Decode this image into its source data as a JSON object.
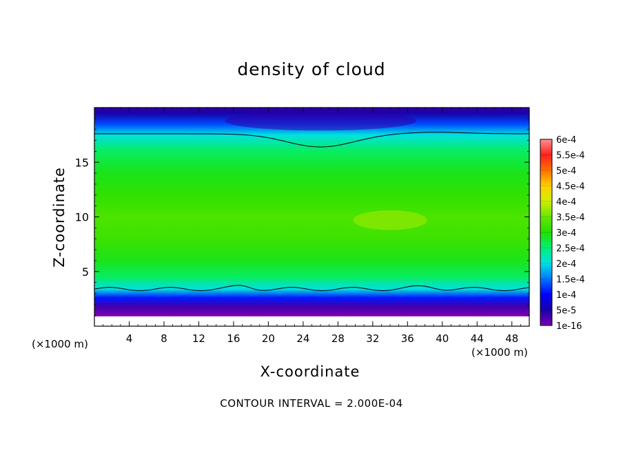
{
  "chart_data": {
    "type": "heatmap",
    "title": "density of cloud",
    "xlabel": "X-coordinate",
    "ylabel": "Z-coordinate",
    "x_unit": "(×1000 m)",
    "x_unit_right": "(×1000 m)",
    "xlim": [
      0,
      50
    ],
    "ylim": [
      0,
      20
    ],
    "x_ticks": [
      4,
      8,
      12,
      16,
      20,
      24,
      28,
      32,
      36,
      40,
      44,
      48
    ],
    "y_ticks": [
      5,
      10,
      15
    ],
    "colorbar": {
      "labels": [
        "1e-16",
        "5e-5",
        "1e-4",
        "1.5e-4",
        "2e-4",
        "2.5e-4",
        "3e-4",
        "3.5e-4",
        "4e-4",
        "4.5e-4",
        "5e-4",
        "5.5e-4",
        "6e-4"
      ],
      "values": [
        0,
        5e-05,
        0.0001,
        0.00015,
        0.0002,
        0.00025,
        0.0003,
        0.00035,
        0.0004,
        0.00045,
        0.0005,
        0.00055,
        0.0006
      ],
      "colors": [
        "#7a00b4",
        "#1a00a8",
        "#0000ff",
        "#0078ff",
        "#00e0e0",
        "#00f078",
        "#22e000",
        "#66e600",
        "#d0ee00",
        "#ffd000",
        "#ff7000",
        "#ff2020",
        "#ff9090"
      ]
    },
    "contour_interval_label": "CONTOUR INTERVAL = 2.000E-04",
    "contour_levels": [
      0.0002
    ],
    "vertical_profile": {
      "z": [
        0,
        1.0,
        1.8,
        2.6,
        3.4,
        4.5,
        6,
        8,
        10,
        12,
        14,
        16,
        17.5,
        18.5,
        19.5,
        20
      ],
      "density": [
        0,
        0,
        3e-05,
        0.00011,
        0.0002,
        0.00026,
        0.00029,
        0.00032,
        0.00033,
        0.00031,
        0.00029,
        0.00026,
        0.0002,
        0.00013,
        5e-05,
        4e-05
      ]
    },
    "colors": {
      "contour_line": "#000000",
      "frame": "#000000"
    }
  }
}
